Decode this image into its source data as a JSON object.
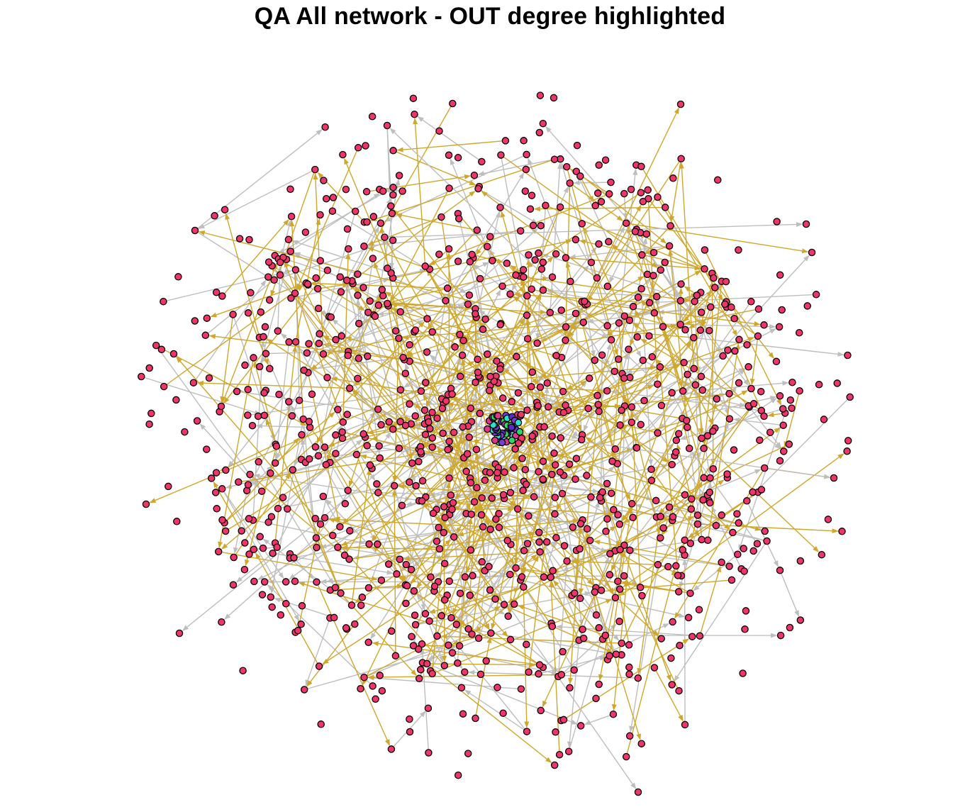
{
  "title": "QA All network - OUT degree highlighted",
  "colors": {
    "node_fill": "#f0356b",
    "node_stroke": "#000000",
    "edge_default": "#bebebe",
    "edge_highlighted": "#cfa72b",
    "hub_colors": [
      "#7e3bd6",
      "#2ad96a",
      "#27e0d0",
      "#e0348a",
      "#5b2bc4"
    ]
  }
}
